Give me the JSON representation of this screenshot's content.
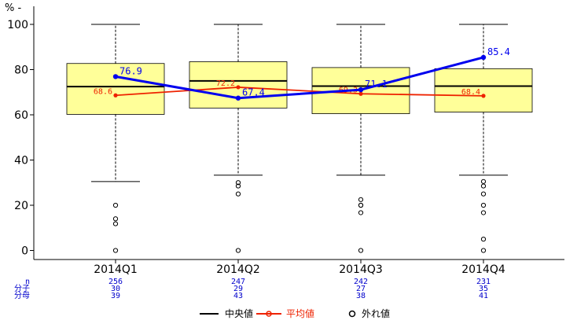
{
  "chart_data": {
    "type": "box",
    "y_unit_label": "% -",
    "ylim": [
      -4,
      108
    ],
    "y_ticks": [
      0,
      20,
      40,
      60,
      80,
      100
    ],
    "categories": [
      "2014Q1",
      "2014Q2",
      "2014Q3",
      "2014Q4"
    ],
    "boxes": [
      {
        "q1": 60.2,
        "median": 72.5,
        "q3": 82.7,
        "whisker_low": 30.5,
        "whisker_high": 100,
        "outliers": [
          20,
          14,
          11.8,
          0
        ]
      },
      {
        "q1": 63.0,
        "median": 75.0,
        "q3": 83.5,
        "whisker_low": 33.3,
        "whisker_high": 100,
        "outliers": [
          30,
          28.5,
          25,
          0
        ]
      },
      {
        "q1": 60.5,
        "median": 72.7,
        "q3": 80.9,
        "whisker_low": 33.3,
        "whisker_high": 100,
        "outliers": [
          22.5,
          20,
          20,
          16.7,
          0
        ]
      },
      {
        "q1": 61.2,
        "median": 72.7,
        "q3": 80.4,
        "whisker_low": 33.3,
        "whisker_high": 100,
        "outliers": [
          30.5,
          28.5,
          25,
          20,
          16.7,
          5,
          0
        ]
      }
    ],
    "series": [
      {
        "name": "中央値",
        "values": [
          76.9,
          67.4,
          71.1,
          85.4
        ],
        "labels": [
          "76.9",
          "67.4",
          "71.1",
          "85.4"
        ],
        "color": "#0000ee"
      },
      {
        "name": "平均値",
        "values": [
          68.6,
          72.2,
          69.3,
          68.4
        ],
        "labels": [
          "68.6",
          "72.2",
          "69.3",
          "68.4"
        ],
        "color": "#ee2200"
      }
    ],
    "stats_labels": [
      "n",
      "分子",
      "分母"
    ],
    "stats": [
      {
        "n": "256",
        "num": "30",
        "den": "39"
      },
      {
        "n": "247",
        "num": "29",
        "den": "43"
      },
      {
        "n": "242",
        "num": "27",
        "den": "38"
      },
      {
        "n": "231",
        "num": "35",
        "den": "41"
      }
    ],
    "legend": [
      {
        "label": "中央値",
        "kind": "line",
        "color": "#000000"
      },
      {
        "label": "平均値",
        "kind": "line-point",
        "color": "#ee2200"
      },
      {
        "label": "外れ値",
        "kind": "point",
        "color": "#000000"
      }
    ],
    "legend_position": "bottom",
    "box_fill": "#ffff99"
  }
}
